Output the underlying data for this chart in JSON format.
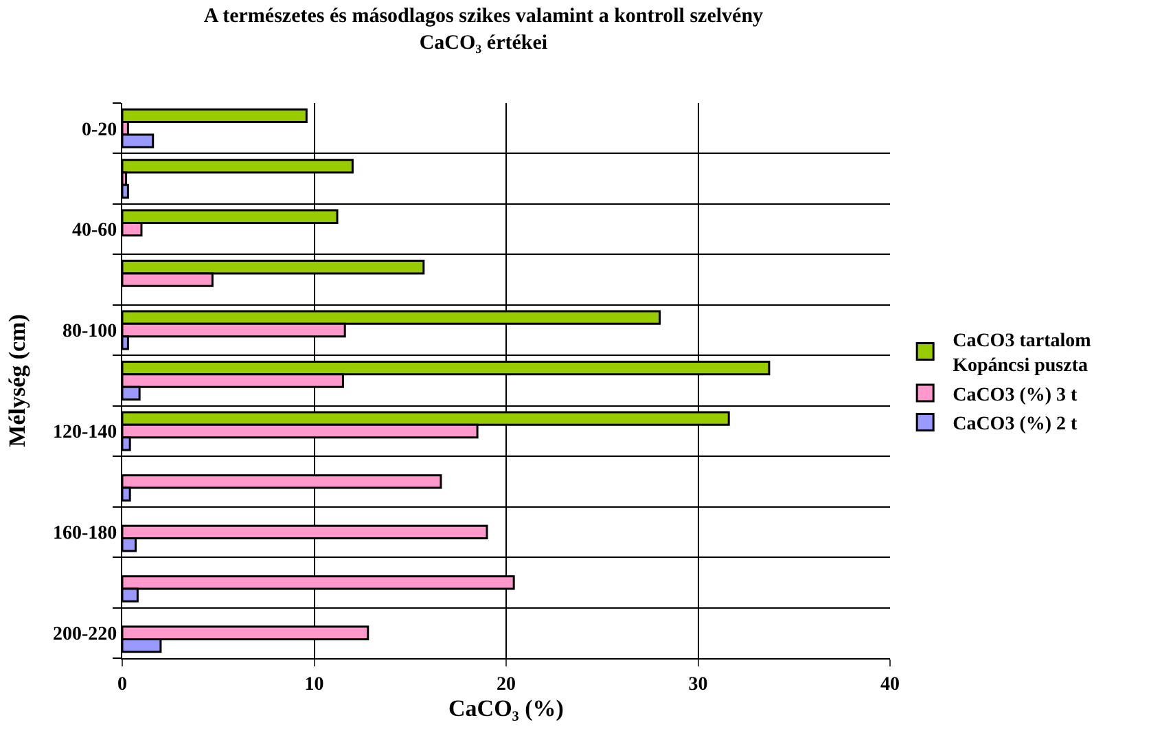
{
  "chart_data": {
    "type": "bar",
    "orientation": "horizontal",
    "title": "A természetes és másodlagos szikes valamint a kontroll szelvény\nCaCO₃ értékei",
    "xlabel": "CaCO₃ (%)",
    "ylabel": "Mélység (cm)",
    "categories": [
      "0-20",
      null,
      "40-60",
      null,
      "80-100",
      null,
      "120-140",
      null,
      "160-180",
      null,
      "200-220"
    ],
    "series": [
      {
        "name": "CaCO3 tartalom\nKopáncsi puszta",
        "color": "#99cc00",
        "values": [
          9.6,
          12.0,
          11.2,
          15.7,
          28.0,
          33.7,
          31.6,
          null,
          null,
          null,
          null
        ]
      },
      {
        "name": "CaCO3 (%) 3 t",
        "color": "#ff99cc",
        "values": [
          0.3,
          0.2,
          1.0,
          4.7,
          11.6,
          11.5,
          18.5,
          16.6,
          19.0,
          20.4,
          12.8
        ]
      },
      {
        "name": "CaCO3 (%) 2 t",
        "color": "#9999ff",
        "values": [
          1.6,
          0.3,
          null,
          null,
          0.3,
          0.9,
          0.4,
          0.4,
          0.7,
          0.8,
          2.0
        ]
      }
    ],
    "xlim": [
      0,
      40
    ],
    "xticks": [
      0,
      10,
      20,
      30,
      40
    ],
    "grid": true,
    "legend": "right"
  }
}
